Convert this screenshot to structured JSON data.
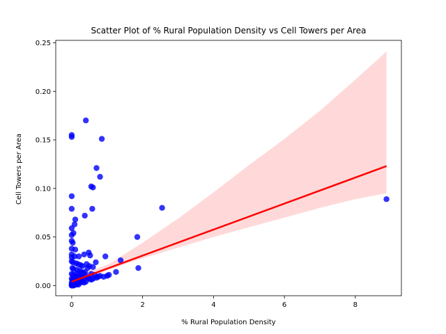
{
  "chart_data": {
    "type": "scatter",
    "title": "Scatter Plot of % Rural Population Density vs Cell Towers per Area",
    "xlabel": "% Rural Population Density",
    "ylabel": "Cell Towers per Area",
    "xlim": [
      -0.45,
      9.3
    ],
    "ylim": [
      -0.0105,
      0.2525
    ],
    "xticks": [
      0,
      2,
      4,
      6,
      8
    ],
    "xtick_labels": [
      "0",
      "2",
      "4",
      "6",
      "8"
    ],
    "yticks": [
      0,
      0.05,
      0.1,
      0.15,
      0.2,
      0.25
    ],
    "ytick_labels": [
      "0.00",
      "0.05",
      "0.10",
      "0.15",
      "0.20",
      "0.25"
    ],
    "grid": false,
    "colors": {
      "points": "#0000ff",
      "fit_line": "#ff0000",
      "confidence_band": "#ffd9d9"
    },
    "series": [
      {
        "name": "",
        "kind": "points",
        "x": [
          0.4,
          0.0,
          0.0,
          0.85,
          0.7,
          0.8,
          0.55,
          0.6,
          0.0,
          0.58,
          0.0,
          0.37,
          0.1,
          0.08,
          0.0,
          0.05,
          0.0,
          0.0,
          0.03,
          0.0,
          0.1,
          0.0,
          0.08,
          0.0,
          0.48,
          0.35,
          0.2,
          0.52,
          0.95,
          0.68,
          0.0,
          0.03,
          0.12,
          0.18,
          0.25,
          0.3,
          0.42,
          0.5,
          0.6,
          0.45,
          0.02,
          0.05,
          0.15,
          0.22,
          0.28,
          0.33,
          0.38,
          0.55,
          0.65,
          0.0,
          0.04,
          0.1,
          0.14,
          0.18,
          0.22,
          0.26,
          0.3,
          0.35,
          0.4,
          0.45,
          0.5,
          0.55,
          0.6,
          0.7,
          0.75,
          0.8,
          0.9,
          1.0,
          1.05,
          0.0,
          0.02,
          0.04,
          0.06,
          0.08,
          0.1,
          0.12,
          0.15,
          0.18,
          0.2,
          0.25,
          0.3,
          0.35,
          0.4,
          0.0,
          0.01,
          0.02,
          0.03,
          0.05,
          0.07,
          0.09,
          0.11,
          0.13,
          0.16,
          0.19,
          0.0,
          0.01,
          0.02,
          0.03,
          0.04,
          0.06,
          0.08,
          0.0,
          0.01,
          0.02,
          0.0,
          0.01,
          1.38,
          1.25,
          1.85,
          1.88,
          2.55,
          8.88
        ],
        "y": [
          0.17,
          0.155,
          0.153,
          0.151,
          0.121,
          0.112,
          0.102,
          0.101,
          0.092,
          0.079,
          0.079,
          0.072,
          0.068,
          0.063,
          0.059,
          0.054,
          0.052,
          0.046,
          0.044,
          0.038,
          0.037,
          0.032,
          0.03,
          0.029,
          0.034,
          0.032,
          0.03,
          0.031,
          0.03,
          0.024,
          0.025,
          0.024,
          0.023,
          0.022,
          0.021,
          0.02,
          0.022,
          0.02,
          0.019,
          0.018,
          0.018,
          0.017,
          0.016,
          0.015,
          0.014,
          0.013,
          0.014,
          0.012,
          0.011,
          0.012,
          0.011,
          0.01,
          0.012,
          0.009,
          0.01,
          0.008,
          0.009,
          0.007,
          0.01,
          0.008,
          0.007,
          0.006,
          0.007,
          0.008,
          0.009,
          0.01,
          0.009,
          0.01,
          0.011,
          0.007,
          0.006,
          0.005,
          0.006,
          0.004,
          0.005,
          0.003,
          0.004,
          0.005,
          0.004,
          0.003,
          0.004,
          0.003,
          0.004,
          0.003,
          0.002,
          0.003,
          0.002,
          0.001,
          0.002,
          0.001,
          0.002,
          0.001,
          0.002,
          0.001,
          0.001,
          0.0,
          0.001,
          0.0,
          0.001,
          0.0,
          0.001,
          0.0,
          0.001,
          0.0,
          0.0,
          0.0,
          0.026,
          0.014,
          0.05,
          0.018,
          0.08,
          0.089
        ]
      },
      {
        "name": "",
        "kind": "regression_line",
        "x": [
          0.0,
          8.88
        ],
        "y": [
          0.004,
          0.123
        ]
      },
      {
        "name": "",
        "kind": "confidence_band",
        "x": [
          0.0,
          1.0,
          2.0,
          3.0,
          4.0,
          5.0,
          6.0,
          7.0,
          8.0,
          8.88
        ],
        "y_upper": [
          0.009,
          0.021,
          0.044,
          0.069,
          0.096,
          0.124,
          0.151,
          0.18,
          0.212,
          0.241
        ],
        "y_lower": [
          0.0,
          0.016,
          0.028,
          0.039,
          0.05,
          0.06,
          0.07,
          0.08,
          0.089,
          0.095
        ]
      }
    ]
  }
}
